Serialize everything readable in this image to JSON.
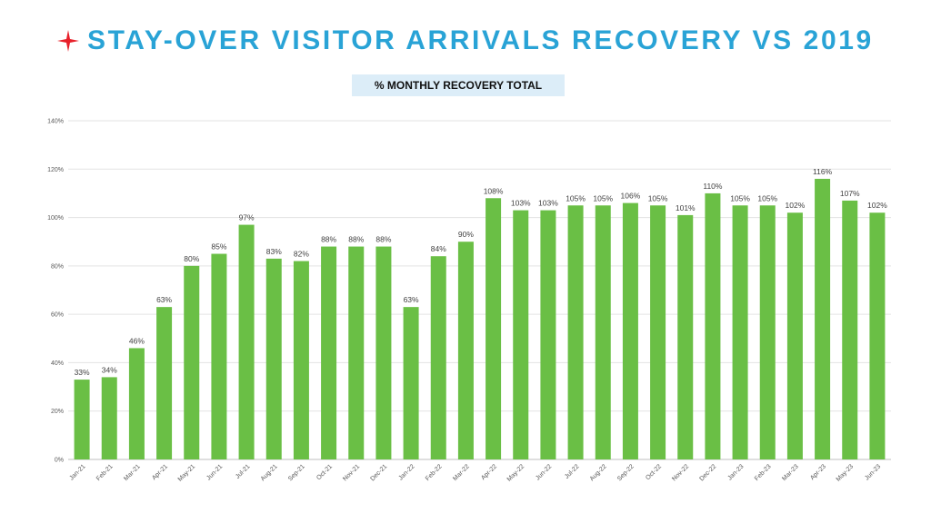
{
  "header": {
    "title": "STAY-OVER VISITOR ARRIVALS RECOVERY VS 2019",
    "subtitle": "% MONTHLY RECOVERY TOTAL",
    "accent_color": "#29a3d6",
    "icon": "red-star-icon"
  },
  "chart_data": {
    "type": "bar",
    "title": "% MONTHLY RECOVERY TOTAL",
    "xlabel": "",
    "ylabel": "",
    "ylim": [
      0,
      140
    ],
    "yticks": [
      "0%",
      "20%",
      "40%",
      "60%",
      "80%",
      "100%",
      "120%",
      "140%"
    ],
    "grid": true,
    "bar_color": "#6abf45",
    "categories": [
      "Jan-21",
      "Feb-21",
      "Mar-21",
      "Apr-21",
      "May-21",
      "Jun-21",
      "Jul-21",
      "Aug-21",
      "Sep-21",
      "Oct-21",
      "Nov-21",
      "Dec-21",
      "Jan-22",
      "Feb-22",
      "Mar-22",
      "Apr-22",
      "May-22",
      "Jun-22",
      "Jul-22",
      "Aug-22",
      "Sep-22",
      "Oct-22",
      "Nov-22",
      "Dec-22",
      "Jan-23",
      "Feb-23",
      "Mar-23",
      "Apr-23",
      "May-23",
      "Jun-23"
    ],
    "values": [
      33,
      34,
      46,
      63,
      80,
      85,
      97,
      83,
      82,
      88,
      88,
      88,
      63,
      84,
      90,
      108,
      103,
      103,
      105,
      105,
      106,
      105,
      101,
      110,
      105,
      105,
      102,
      116,
      107,
      102
    ],
    "data_labels": [
      "33%",
      "34%",
      "46%",
      "63%",
      "80%",
      "85%",
      "97%",
      "83%",
      "82%",
      "88%",
      "88%",
      "88%",
      "63%",
      "84%",
      "90%",
      "108%",
      "103%",
      "103%",
      "105%",
      "105%",
      "106%",
      "105%",
      "101%",
      "110%",
      "105%",
      "105%",
      "102%",
      "116%",
      "107%",
      "102%"
    ]
  }
}
